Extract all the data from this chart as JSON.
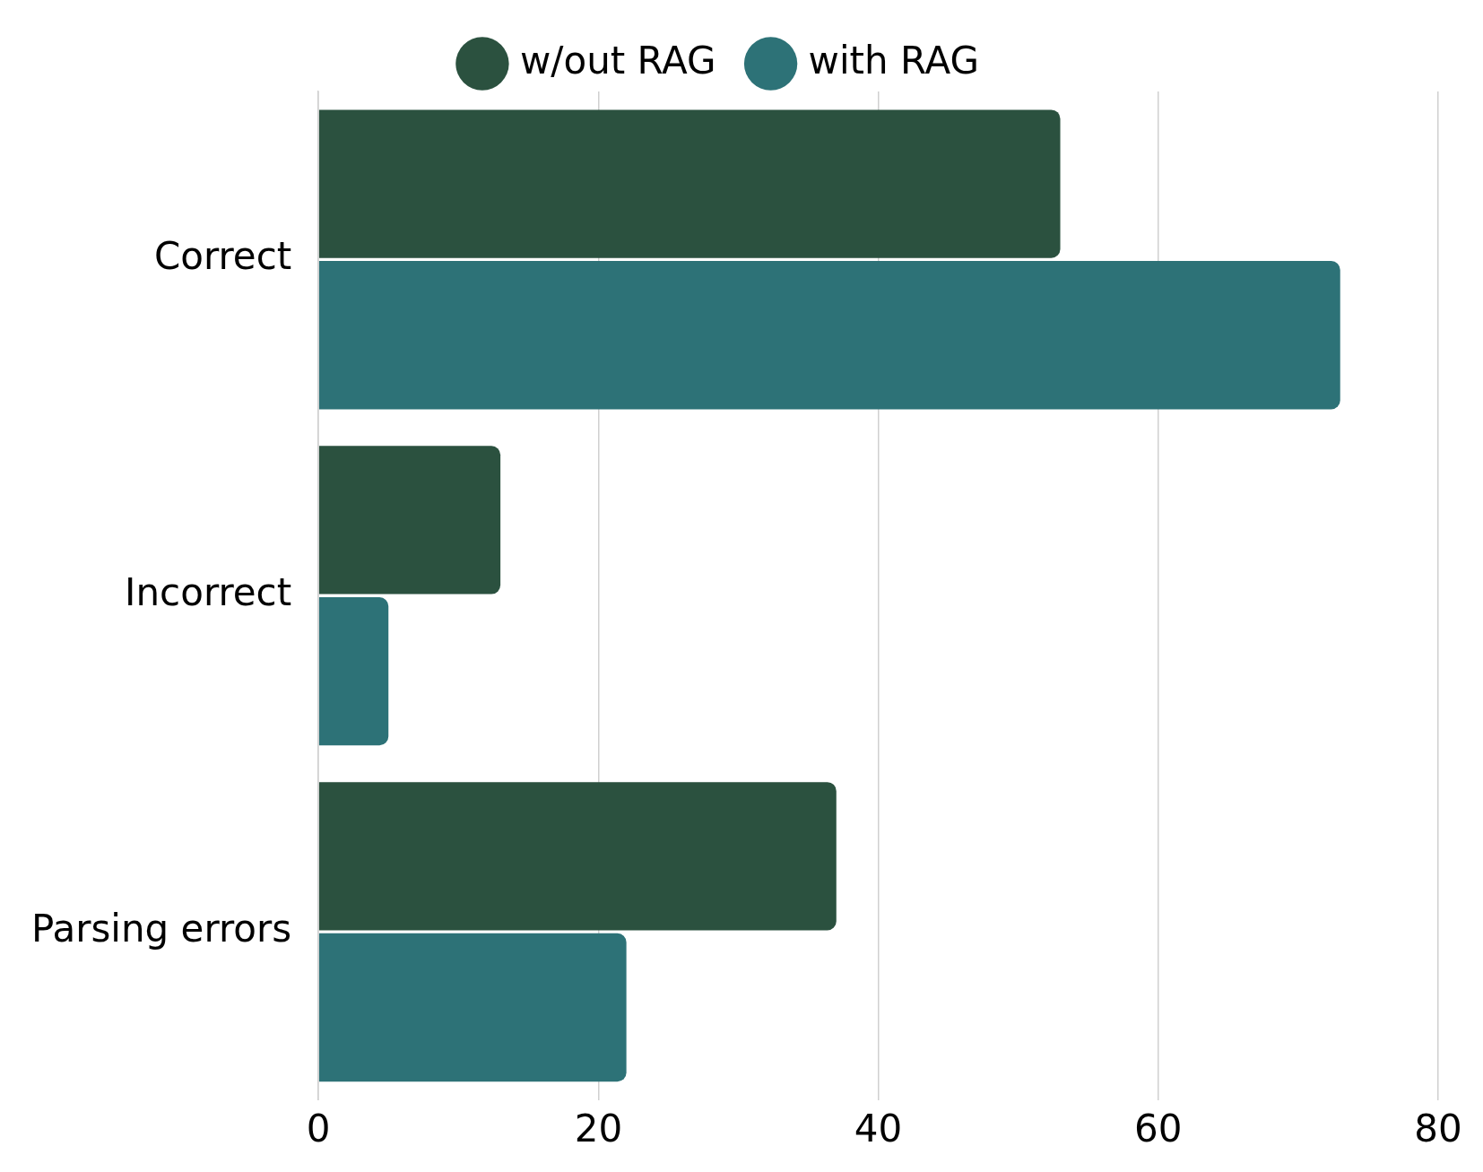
{
  "chart_data": {
    "type": "bar",
    "orientation": "horizontal",
    "categories": [
      "Correct",
      "Incorrect",
      "Parsing errors"
    ],
    "series": [
      {
        "name": "w/out RAG",
        "color": "#2b513f",
        "values": [
          53,
          13,
          37
        ]
      },
      {
        "name": "with RAG",
        "color": "#2d7277",
        "values": [
          73,
          5,
          22
        ]
      }
    ],
    "xlim": [
      0,
      80
    ],
    "xticks": [
      0,
      20,
      40,
      60,
      80
    ],
    "grid": "x",
    "legend": "top"
  }
}
